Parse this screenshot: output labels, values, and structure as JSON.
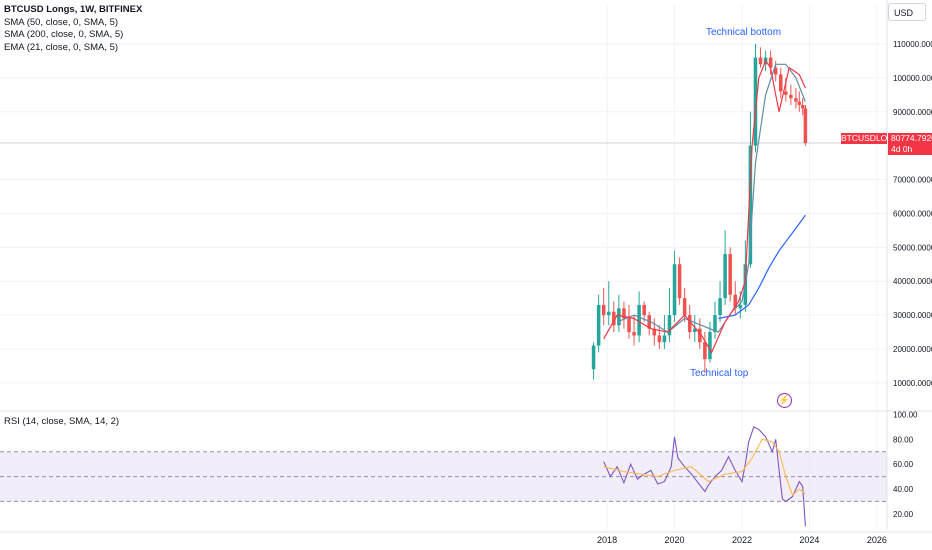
{
  "header": {
    "title": "BTCUSD Longs, 1W, BITFINEX",
    "indicators": [
      "SMA (50, close, 0, SMA, 5)",
      "SMA (200, close, 0, SMA, 5)",
      "EMA (21, close, 0, SMA, 5)"
    ],
    "currency": "USD"
  },
  "price_tag": {
    "symbol": "BTCUSDLONGS",
    "value": "80774.7926",
    "countdown": "4d 0h"
  },
  "rsi": {
    "label": "RSI (14, close, SMA, 14, 2)"
  },
  "annotations": {
    "top_label": "Technical bottom",
    "bottom_label": "Technical top"
  },
  "colors": {
    "candle_up": "#26a69a",
    "candle_down": "#ef5350",
    "sma50": "#5d8fa8",
    "sma200": "#2962ff",
    "ema21": "#f23645",
    "rsi_line": "#7e57c2",
    "rsi_ma": "#ffb74d",
    "rsi_band": "#ede7f6",
    "last_price": "#f23645"
  },
  "icons": [
    "lightning-icon"
  ],
  "chart_data": [
    {
      "type": "line",
      "title": "BTCUSD Longs, 1W, BITFINEX",
      "y_ticks": [
        "10000.0000",
        "20000.0000",
        "30000.0000",
        "40000.0000",
        "50000.0000",
        "60000.0000",
        "70000.0000",
        "90000.0000",
        "100000.0000",
        "110000.0000"
      ],
      "x_ticks": [
        "2018",
        "2020",
        "2022",
        "2024",
        "2026"
      ],
      "x_tick_values": [
        2018,
        2020,
        2022,
        2024,
        2026
      ],
      "xlim": [
        2000.0,
        2026.3
      ],
      "ylim": [
        2000,
        121500
      ],
      "last_value": 80774.7926,
      "grid": true,
      "candles": {
        "t": [
          2017.6,
          2017.75,
          2017.9,
          2018.05,
          2018.2,
          2018.35,
          2018.5,
          2018.65,
          2018.8,
          2018.95,
          2019.1,
          2019.25,
          2019.4,
          2019.55,
          2019.7,
          2019.85,
          2020.0,
          2020.15,
          2020.3,
          2020.45,
          2020.6,
          2020.75,
          2020.9,
          2021.05,
          2021.2,
          2021.35,
          2021.5,
          2021.65,
          2021.8,
          2021.95,
          2022.1,
          2022.25,
          2022.4,
          2022.55,
          2022.7,
          2022.85,
          2023.0,
          2023.15,
          2023.3,
          2023.45,
          2023.6,
          2023.7,
          2023.8,
          2023.88
        ],
        "open": [
          14000,
          21000,
          33000,
          30000,
          31000,
          27000,
          32000,
          29000,
          25000,
          24000,
          33000,
          30000,
          26000,
          24000,
          22000,
          24000,
          30000,
          45000,
          35000,
          30000,
          25000,
          26000,
          22000,
          17000,
          25000,
          30000,
          35000,
          48000,
          36000,
          32000,
          33000,
          45000,
          80000,
          106000,
          104000,
          106000,
          103000,
          101000,
          96000,
          95000,
          94000,
          93000,
          92000,
          91000
        ],
        "close": [
          21000,
          33000,
          30000,
          31000,
          27000,
          32000,
          29000,
          25000,
          24000,
          33000,
          30000,
          26000,
          24000,
          22000,
          24000,
          30000,
          45000,
          35000,
          30000,
          25000,
          26000,
          22000,
          17000,
          25000,
          30000,
          35000,
          48000,
          36000,
          32000,
          33000,
          45000,
          80000,
          106000,
          104000,
          106000,
          103000,
          101000,
          96000,
          95000,
          94000,
          93000,
          92000,
          91000,
          80775
        ],
        "high": [
          22000,
          36000,
          38000,
          40000,
          34000,
          36000,
          34000,
          33000,
          30000,
          37000,
          34000,
          31000,
          29000,
          27000,
          30000,
          38000,
          49000,
          47000,
          38000,
          33000,
          30000,
          29000,
          25000,
          28000,
          34000,
          40000,
          55000,
          50000,
          40000,
          37000,
          52000,
          90000,
          110000,
          109000,
          108000,
          108000,
          105000,
          103000,
          100000,
          98000,
          97000,
          96000,
          94000,
          92000
        ],
        "low": [
          11000,
          19000,
          27000,
          27000,
          25000,
          25000,
          26000,
          23000,
          21000,
          22000,
          28000,
          24000,
          21000,
          20000,
          20000,
          22000,
          28000,
          33000,
          28000,
          23000,
          22000,
          20000,
          13000,
          16000,
          23000,
          28000,
          33000,
          34000,
          30000,
          29000,
          31000,
          44000,
          78000,
          103000,
          102000,
          101000,
          99000,
          94000,
          93000,
          92000,
          91000,
          90000,
          89000,
          80000
        ]
      },
      "series": [
        {
          "name": "SMA (50, close, 0, SMA, 5)",
          "x": [
            2018.3,
            2018.8,
            2019.3,
            2019.8,
            2020.3,
            2020.8,
            2021.3,
            2021.7,
            2022.0,
            2022.2,
            2022.4,
            2022.7,
            2023.0,
            2023.3,
            2023.6,
            2023.88
          ],
          "y": [
            28000,
            30000,
            28000,
            25000,
            29000,
            27000,
            25000,
            31000,
            34000,
            45000,
            75000,
            95000,
            104000,
            104000,
            100000,
            93000
          ]
        },
        {
          "name": "SMA (200, close, 0, SMA, 5)",
          "x": [
            2021.3,
            2021.8,
            2022.2,
            2022.5,
            2022.8,
            2023.1,
            2023.4,
            2023.7,
            2023.88
          ],
          "y": [
            29000,
            30000,
            33000,
            38000,
            44000,
            49000,
            53000,
            57000,
            59500
          ]
        },
        {
          "name": "EMA (21, close, 0, SMA, 5)",
          "x": [
            2017.9,
            2018.3,
            2018.8,
            2019.3,
            2019.8,
            2020.3,
            2020.8,
            2021.1,
            2021.5,
            2021.9,
            2022.1,
            2022.3,
            2022.5,
            2022.7,
            2022.85,
            2023.0,
            2023.1,
            2023.4,
            2023.7,
            2023.88
          ],
          "y": [
            23000,
            30000,
            29000,
            26000,
            25000,
            30000,
            24000,
            19000,
            28000,
            34000,
            40000,
            80000,
            100000,
            105000,
            103000,
            95000,
            90000,
            103000,
            101000,
            97000
          ]
        }
      ]
    },
    {
      "type": "line",
      "title": "RSI (14, close, SMA, 14, 2)",
      "y_ticks": [
        "20.00",
        "40.00",
        "60.00",
        "80.00",
        "100.00"
      ],
      "y_tick_values": [
        20,
        40,
        60,
        80,
        100
      ],
      "ylim": [
        7,
        102
      ],
      "bands": [
        30,
        50,
        70
      ],
      "series": [
        {
          "name": "RSI",
          "x": [
            2017.9,
            2018.1,
            2018.3,
            2018.5,
            2018.7,
            2018.9,
            2019.1,
            2019.3,
            2019.5,
            2019.7,
            2019.9,
            2020.0,
            2020.1,
            2020.3,
            2020.5,
            2020.7,
            2020.9,
            2021.0,
            2021.2,
            2021.4,
            2021.6,
            2021.8,
            2022.0,
            2022.1,
            2022.2,
            2022.35,
            2022.5,
            2022.7,
            2022.9,
            2023.0,
            2023.1,
            2023.2,
            2023.3,
            2023.5,
            2023.7,
            2023.8,
            2023.88
          ],
          "y": [
            62,
            50,
            58,
            45,
            60,
            48,
            52,
            55,
            44,
            46,
            58,
            82,
            65,
            58,
            52,
            45,
            38,
            43,
            50,
            55,
            66,
            55,
            46,
            60,
            78,
            90,
            88,
            82,
            70,
            80,
            55,
            32,
            30,
            34,
            46,
            42,
            10
          ]
        },
        {
          "name": "RSI-based MA",
          "x": [
            2017.9,
            2018.5,
            2019.0,
            2019.5,
            2020.0,
            2020.5,
            2021.0,
            2021.5,
            2022.0,
            2022.3,
            2022.6,
            2022.9,
            2023.1,
            2023.3,
            2023.5,
            2023.7,
            2023.88
          ],
          "y": [
            58,
            54,
            52,
            50,
            55,
            58,
            46,
            52,
            54,
            65,
            80,
            78,
            70,
            50,
            35,
            40,
            36
          ]
        }
      ]
    }
  ]
}
